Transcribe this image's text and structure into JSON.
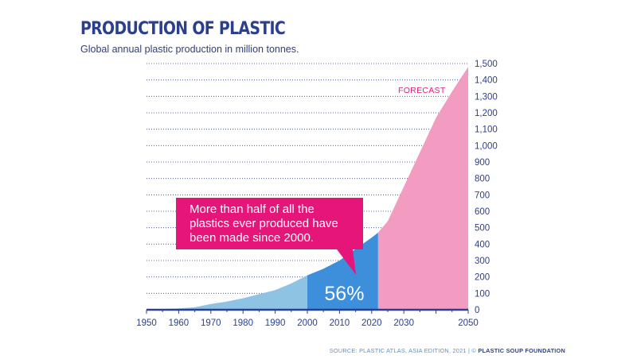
{
  "title": "PRODUCTION OF PLASTIC",
  "subtitle": "Global annual plastic production in million tonnes.",
  "source": {
    "text": "SOURCE: PLASTIC ATLAS, ASIA EDITION, 2021 | © ",
    "org": "PLASTIC SOUP FOUNDATION"
  },
  "colors": {
    "title": "#2b3f8f",
    "historic_light": "#8fc3e3",
    "since_2000": "#3d8fdb",
    "forecast": "#f29cc2",
    "callout": "#e6157a",
    "grid": "#2b3f8f"
  },
  "chart_data": {
    "type": "area",
    "title": "PRODUCTION OF PLASTIC",
    "subtitle": "Global annual plastic production in million tonnes.",
    "xlim": [
      1950,
      2050
    ],
    "ylim": [
      0,
      1500
    ],
    "x_ticks": [
      "1950",
      "1960",
      "1970",
      "1980",
      "1990",
      "2000",
      "2010",
      "2020",
      "2030",
      "2050"
    ],
    "x_tick_values": [
      1950,
      1960,
      1970,
      1980,
      1990,
      2000,
      2010,
      2020,
      2030,
      2050
    ],
    "y_ticks": [
      "0",
      "100",
      "200",
      "300",
      "400",
      "500",
      "600",
      "700",
      "800",
      "900",
      "1,000",
      "1,100",
      "1,200",
      "1,300",
      "1,400",
      "1,500"
    ],
    "y_tick_values": [
      0,
      100,
      200,
      300,
      400,
      500,
      600,
      700,
      800,
      900,
      1000,
      1100,
      1200,
      1300,
      1400,
      1500
    ],
    "y_axis_side": "right",
    "grid": "horizontal dotted",
    "x": [
      1950,
      1955,
      1960,
      1965,
      1970,
      1975,
      1980,
      1985,
      1990,
      1995,
      2000,
      2005,
      2010,
      2015,
      2020,
      2022,
      2025,
      2030,
      2035,
      2040,
      2045,
      2050
    ],
    "y": [
      2,
      4,
      8,
      15,
      35,
      50,
      70,
      95,
      120,
      160,
      210,
      250,
      300,
      370,
      440,
      470,
      540,
      750,
      960,
      1170,
      1330,
      1480
    ],
    "segments": [
      {
        "from": 1950,
        "to": 2000,
        "color": "historic_light"
      },
      {
        "from": 2000,
        "to": 2022,
        "color": "since_2000",
        "label": "56%"
      },
      {
        "from": 2022,
        "to": 2050,
        "color": "forecast",
        "label": "FORECAST"
      }
    ],
    "annotations": {
      "callout_lines": [
        "More than half of all the",
        "plastics ever produced have",
        "been made since 2000."
      ],
      "share_since_2000": "56%",
      "forecast_label": "FORECAST"
    }
  }
}
